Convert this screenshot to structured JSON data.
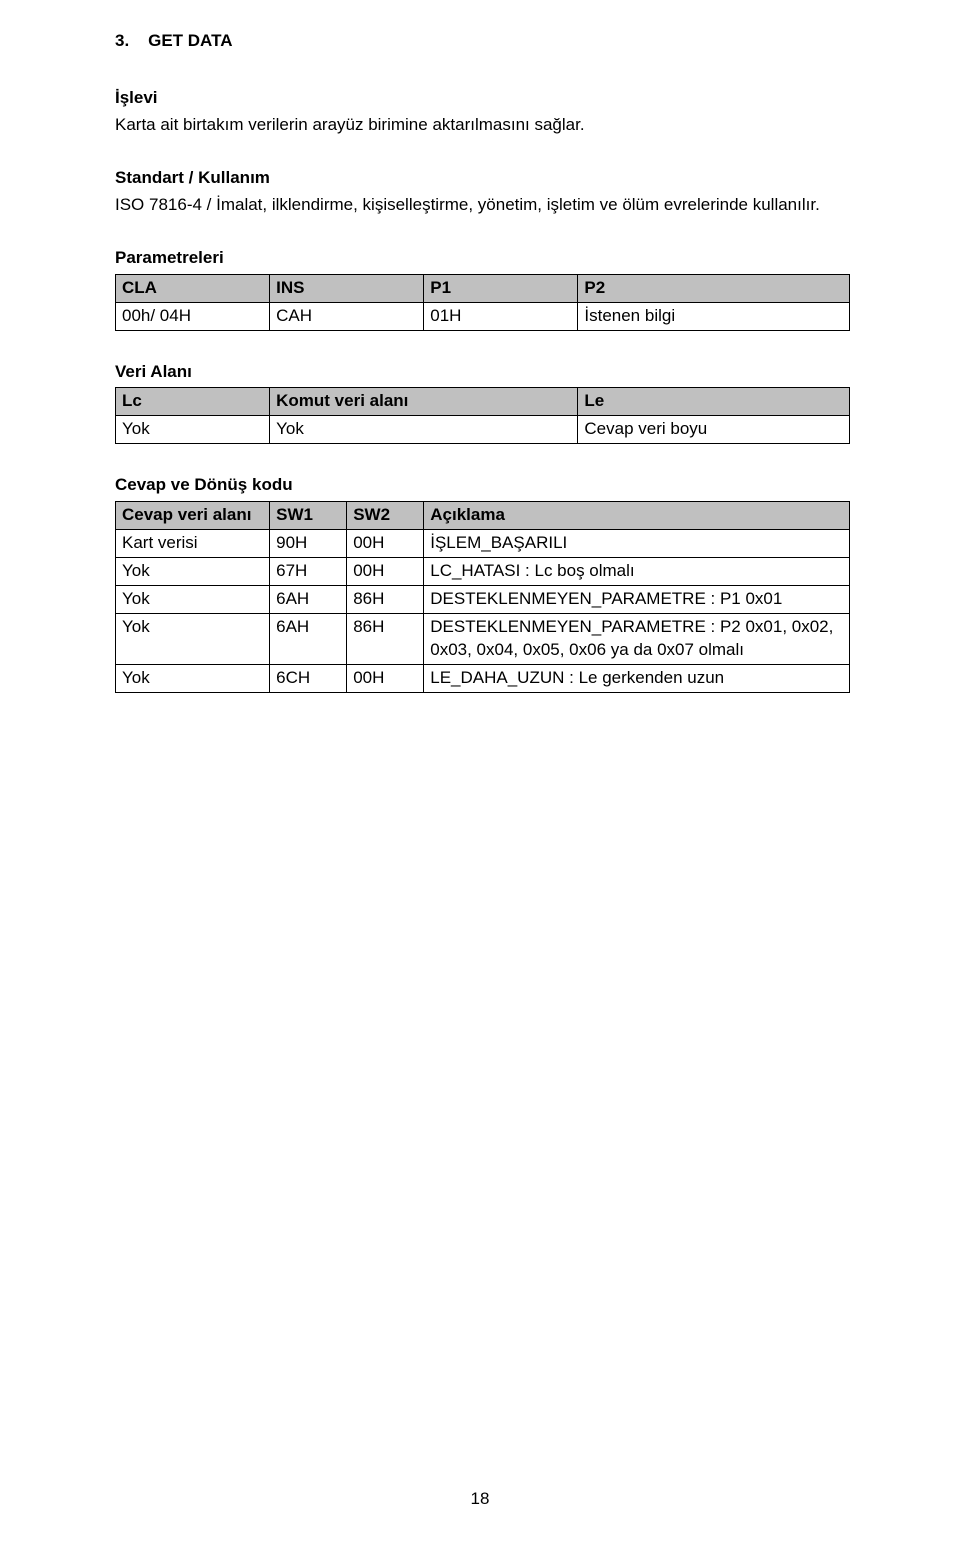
{
  "section_number": "3.",
  "section_title": "GET DATA",
  "islevi": {
    "heading": "İşlevi",
    "text": "Karta ait birtakım verilerin arayüz birimine aktarılmasını sağlar."
  },
  "standart": {
    "heading": "Standart / Kullanım",
    "text": "ISO 7816-4 / İmalat, ilklendirme, kişiselleştirme, yönetim, işletim ve ölüm evrelerinde kullanılır."
  },
  "parametreleri": {
    "heading": "Parametreleri",
    "headers": [
      "CLA",
      "INS",
      "P1",
      "P2"
    ],
    "row": [
      "00h/ 04H",
      "CAH",
      "01H",
      "İstenen bilgi"
    ]
  },
  "veri_alani": {
    "heading": "Veri Alanı",
    "headers": [
      "Lc",
      "Komut veri alanı",
      "Le"
    ],
    "row": [
      "Yok",
      "Yok",
      "Cevap veri boyu"
    ]
  },
  "cevap_donus": {
    "heading": "Cevap ve Dönüş kodu",
    "headers": [
      "Cevap veri alanı",
      "SW1",
      "SW2",
      "Açıklama"
    ],
    "rows": [
      [
        "Kart verisi",
        "90H",
        "00H",
        "İŞLEM_BAŞARILI"
      ],
      [
        "Yok",
        "67H",
        "00H",
        "LC_HATASI : Lc boş olmalı"
      ],
      [
        "Yok",
        "6AH",
        "86H",
        "DESTEKLENMEYEN_PARAMETRE : P1 0x01"
      ],
      [
        "Yok",
        "6AH",
        "86H",
        "DESTEKLENMEYEN_PARAMETRE : P2 0x01, 0x02, 0x03, 0x04, 0x05, 0x06 ya da 0x07 olmalı"
      ],
      [
        "Yok",
        "6CH",
        "00H",
        "LE_DAHA_UZUN : Le gerkenden uzun"
      ]
    ]
  },
  "page_number": "18"
}
